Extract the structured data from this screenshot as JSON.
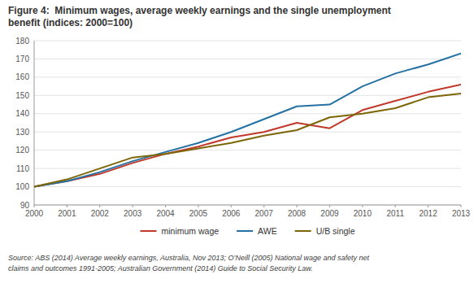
{
  "chart_data": {
    "type": "line",
    "title": "Figure 4:  Minimum wages, average weekly earnings and the single unemployment\nbenefit (indices: 2000=100)",
    "annotations": [
      "Source: ABS (2014) Average weekly earnings, Australia, Nov 2013; O’Neill (2005) National wage and safety net\nclaims and outcomes 1991-2005; Australian Government (2014) Guide to Social Security Law."
    ],
    "x": [
      2000,
      2001,
      2002,
      2003,
      2004,
      2005,
      2006,
      2007,
      2008,
      2009,
      2010,
      2011,
      2012,
      2013
    ],
    "xlim": [
      2000,
      2013
    ],
    "xticks": [
      2000,
      2001,
      2002,
      2003,
      2004,
      2005,
      2006,
      2007,
      2008,
      2009,
      2010,
      2011,
      2012,
      2013
    ],
    "ylim": [
      90,
      180
    ],
    "yticks": [
      90,
      100,
      110,
      120,
      130,
      140,
      150,
      160,
      170,
      180
    ],
    "grid": true,
    "legend": "bottom",
    "series": [
      {
        "name": "minimum wage",
        "color": "#c0392b",
        "values": [
          100,
          103,
          107,
          113,
          118,
          122,
          127,
          130,
          135,
          132,
          142,
          147,
          152,
          156
        ]
      },
      {
        "name": "AWE",
        "color": "#2471a3",
        "values": [
          100,
          103,
          108,
          114,
          119,
          124,
          130,
          137,
          144,
          145,
          155,
          162,
          167,
          173
        ]
      },
      {
        "name": "U/B single",
        "color": "#7d6608",
        "values": [
          100,
          104,
          110,
          116,
          118,
          121,
          124,
          128,
          131,
          138,
          140,
          143,
          149,
          151
        ]
      }
    ]
  }
}
